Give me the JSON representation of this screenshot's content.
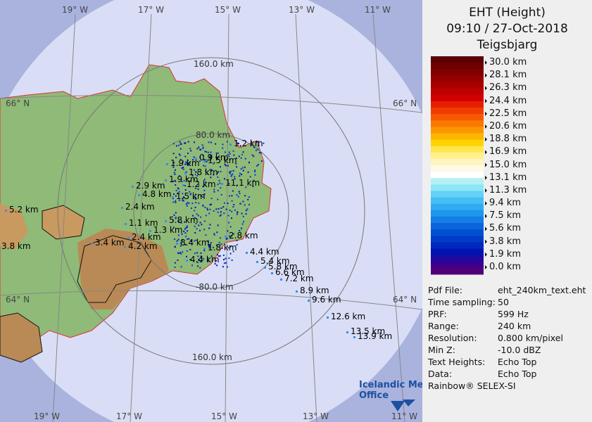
{
  "title": [
    "EHT (Height)",
    "09:10 / 27-Oct-2018",
    "Teigsbjarg"
  ],
  "scale_labels": [
    "30.0 km",
    "28.1 km",
    "26.3 km",
    "24.4 km",
    "22.5 km",
    "20.6 km",
    "18.8 km",
    "16.9 km",
    "15.0 km",
    "13.1 km",
    "11.3 km",
    "9.4 km",
    "7.5 km",
    "5.6 km",
    "3.8 km",
    "1.9 km",
    "0.0 km"
  ],
  "scale_colors": [
    "#5a0000",
    "#6e0000",
    "#820000",
    "#960000",
    "#aa0000",
    "#be0000",
    "#d20000",
    "#e61e00",
    "#f03c00",
    "#f55a00",
    "#fa7800",
    "#fc9600",
    "#feb400",
    "#ffd200",
    "#ffe650",
    "#fff08c",
    "#fff5be",
    "#fffae6",
    "#ffffff",
    "#b4f0f5",
    "#8ce6f5",
    "#64d2f5",
    "#46bef5",
    "#32aaf0",
    "#1e96eb",
    "#147de6",
    "#0a64dc",
    "#0050d2",
    "#003cc8",
    "#0028be",
    "#0014b4",
    "#1e0aa0",
    "#3c008c",
    "#500078"
  ],
  "info": [
    [
      "Pdf File:",
      "eht_240km_text.eht"
    ],
    [
      "Time sampling:",
      "50"
    ],
    [
      "PRF:",
      "599 Hz"
    ],
    [
      "Range:",
      "240 km"
    ],
    [
      "Resolution:",
      "0.800 km/pixel"
    ],
    [
      "Min Z:",
      "-10.0 dBZ"
    ],
    [
      "Text Heights:",
      "Echo Top"
    ],
    [
      "Data:",
      "Echo Top"
    ]
  ],
  "footer": "Rainbow® SELEX-SI",
  "logo": [
    "Icelandic Met",
    "Office"
  ],
  "graticule_labels": [
    "19° W",
    "17° W",
    "15° W",
    "13° W",
    "11° W",
    "66° N",
    "66° N",
    "64° N",
    "64° N",
    "19° W",
    "17° W",
    "15° W",
    "13° W",
    "11° W"
  ],
  "range_labels": [
    "160.0 km",
    "80.0 km",
    "-80.0 km",
    "160.0 km"
  ],
  "echo_labels": [
    "1.2 km",
    "0.9 km",
    "1.9 km",
    "1.5 km",
    "1.8 km",
    "1.9 km",
    "1.2 km",
    "2.9 km",
    "4.8 km",
    "1.5 km",
    "11.1 km",
    "2.4 km",
    "1.1 km",
    "5.8 km",
    "1.3 km",
    "2.4 km",
    "3.4 km",
    "4.2 km",
    "8.4 km",
    "2.8 km",
    "1.8 km",
    "4.4 km",
    "5.4 km",
    "5.8 km",
    "6.6 km",
    "7.2 km",
    "8.9 km",
    "9.6 km",
    "12.6 km",
    "13.5 km",
    "13.9 km",
    "5.2 km",
    "3.8 km",
    "4.4 km"
  ]
}
